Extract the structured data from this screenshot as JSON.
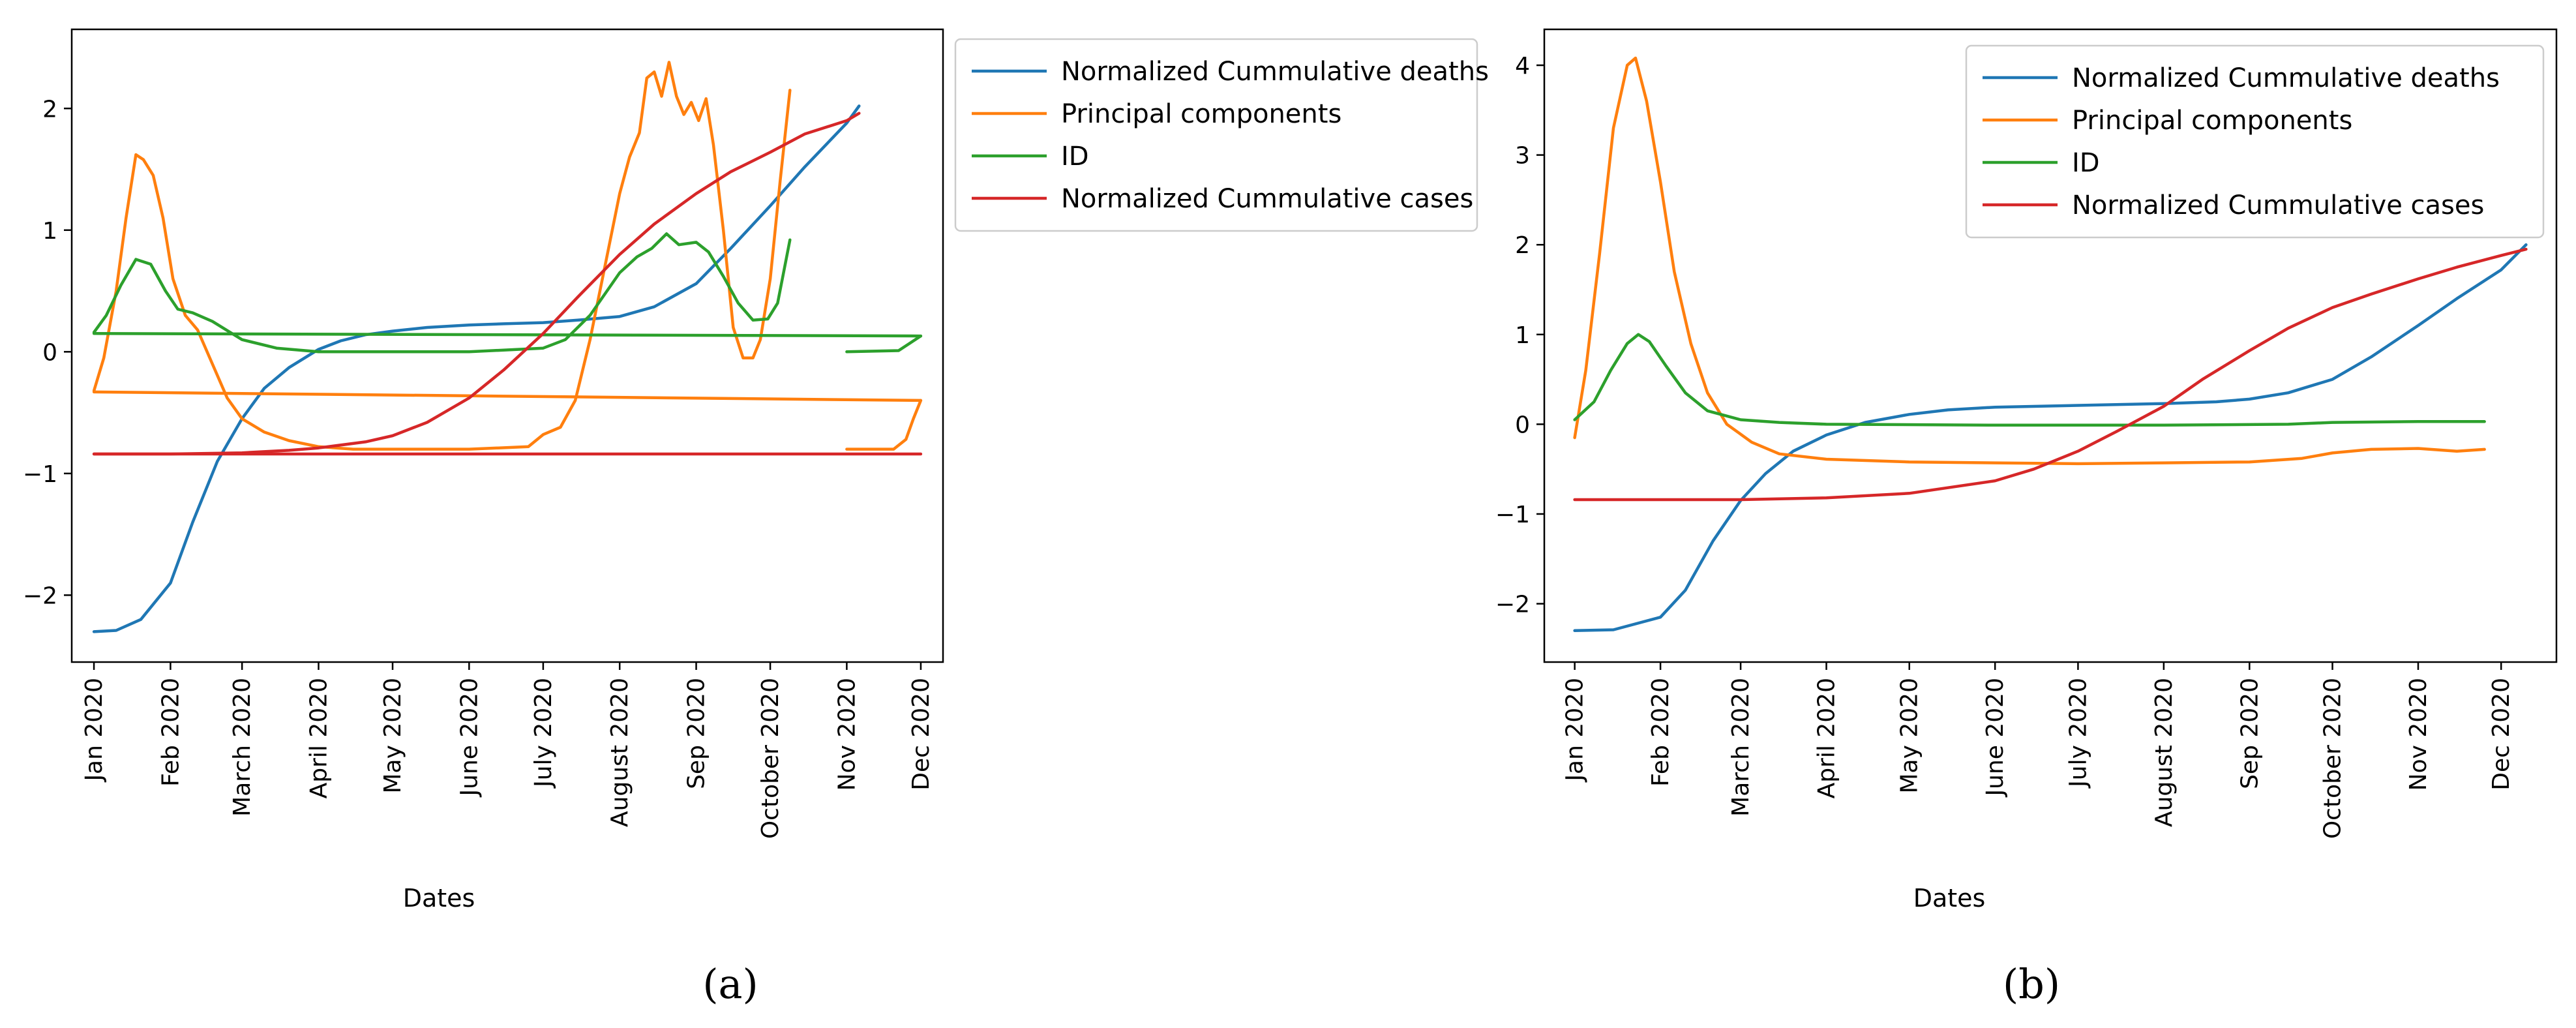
{
  "figure": {
    "captions": [
      "(a)",
      "(b)"
    ]
  },
  "chart_data": [
    {
      "type": "line",
      "panel": "a",
      "xlabel": "Dates",
      "x_tick_labels": [
        "Jan 2020",
        "Feb 2020",
        "March 2020",
        "April 2020",
        "May 2020",
        "June 2020",
        "July 2020",
        "August 2020",
        "Sep 2020",
        "October 2020",
        "Nov 2020",
        "Dec 2020"
      ],
      "xlim": [
        "2019-12-23",
        "2020-12-10"
      ],
      "ylim": [
        -2.55,
        2.65
      ],
      "y_ticks": [
        -2,
        -1,
        0,
        1,
        2
      ],
      "grid": false,
      "legend": {
        "position": "outside-right-top"
      },
      "series": [
        {
          "name": "Normalized Cummulative deaths",
          "color": "#1f77b4",
          "points": [
            [
              "2020-01-01",
              -2.3
            ],
            [
              "2020-01-10",
              -2.29
            ],
            [
              "2020-01-20",
              -2.2
            ],
            [
              "2020-02-01",
              -1.9
            ],
            [
              "2020-02-10",
              -1.4
            ],
            [
              "2020-02-20",
              -0.9
            ],
            [
              "2020-03-01",
              -0.55
            ],
            [
              "2020-03-10",
              -0.3
            ],
            [
              "2020-03-20",
              -0.13
            ],
            [
              "2020-04-01",
              0.02
            ],
            [
              "2020-04-10",
              0.09
            ],
            [
              "2020-04-20",
              0.14
            ],
            [
              "2020-05-01",
              0.17
            ],
            [
              "2020-05-15",
              0.2
            ],
            [
              "2020-06-01",
              0.22
            ],
            [
              "2020-06-15",
              0.23
            ],
            [
              "2020-07-01",
              0.24
            ],
            [
              "2020-07-15",
              0.26
            ],
            [
              "2020-08-01",
              0.29
            ],
            [
              "2020-08-15",
              0.37
            ],
            [
              "2020-09-01",
              0.56
            ],
            [
              "2020-09-15",
              0.85
            ],
            [
              "2020-10-01",
              1.2
            ],
            [
              "2020-10-15",
              1.52
            ],
            [
              "2020-11-01",
              1.88
            ],
            [
              "2020-11-06",
              2.02
            ]
          ]
        },
        {
          "name": "Principal components",
          "color": "#ff7f0e",
          "points": [
            [
              "2020-01-01",
              -0.32
            ],
            [
              "2020-01-05",
              -0.05
            ],
            [
              "2020-01-10",
              0.5
            ],
            [
              "2020-01-14",
              1.1
            ],
            [
              "2020-01-18",
              1.62
            ],
            [
              "2020-01-21",
              1.58
            ],
            [
              "2020-01-25",
              1.45
            ],
            [
              "2020-01-29",
              1.1
            ],
            [
              "2020-02-02",
              0.6
            ],
            [
              "2020-02-07",
              0.3
            ],
            [
              "2020-02-12",
              0.18
            ],
            [
              "2020-02-18",
              -0.1
            ],
            [
              "2020-02-24",
              -0.38
            ],
            [
              "2020-03-01",
              -0.55
            ],
            [
              "2020-03-10",
              -0.66
            ],
            [
              "2020-03-20",
              -0.73
            ],
            [
              "2020-04-01",
              -0.78
            ],
            [
              "2020-04-15",
              -0.8
            ],
            [
              "2020-05-01",
              -0.8
            ],
            [
              "2020-06-01",
              -0.8
            ],
            [
              "2020-06-25",
              -0.78
            ],
            [
              "2020-07-01",
              -0.68
            ],
            [
              "2020-07-08",
              -0.62
            ],
            [
              "2020-07-14",
              -0.4
            ],
            [
              "2020-07-20",
              0.1
            ],
            [
              "2020-07-26",
              0.7
            ],
            [
              "2020-08-01",
              1.3
            ],
            [
              "2020-08-05",
              1.6
            ],
            [
              "2020-08-09",
              1.8
            ],
            [
              "2020-08-12",
              2.25
            ],
            [
              "2020-08-15",
              2.3
            ],
            [
              "2020-08-18",
              2.1
            ],
            [
              "2020-08-21",
              2.38
            ],
            [
              "2020-08-24",
              2.1
            ],
            [
              "2020-08-27",
              1.95
            ],
            [
              "2020-08-30",
              2.05
            ],
            [
              "2020-09-02",
              1.9
            ],
            [
              "2020-09-05",
              2.08
            ],
            [
              "2020-09-08",
              1.7
            ],
            [
              "2020-09-12",
              1.0
            ],
            [
              "2020-09-16",
              0.2
            ],
            [
              "2020-09-20",
              -0.05
            ],
            [
              "2020-09-24",
              -0.05
            ],
            [
              "2020-09-27",
              0.1
            ],
            [
              "2020-10-01",
              0.6
            ],
            [
              "2020-10-05",
              1.4
            ],
            [
              "2020-10-09",
              2.15
            ]
          ],
          "extra_segments": [
            [
              [
                "2020-01-01",
                -0.33
              ],
              [
                "2020-12-01",
                -0.4
              ]
            ],
            [
              [
                "2020-11-01",
                -0.8
              ],
              [
                "2020-11-20",
                -0.8
              ],
              [
                "2020-11-25",
                -0.72
              ],
              [
                "2020-11-28",
                -0.55
              ],
              [
                "2020-12-01",
                -0.4
              ]
            ]
          ]
        },
        {
          "name": "ID",
          "color": "#2ca02c",
          "points": [
            [
              "2020-01-01",
              0.16
            ],
            [
              "2020-01-06",
              0.3
            ],
            [
              "2020-01-12",
              0.55
            ],
            [
              "2020-01-18",
              0.76
            ],
            [
              "2020-01-24",
              0.72
            ],
            [
              "2020-01-30",
              0.5
            ],
            [
              "2020-02-04",
              0.35
            ],
            [
              "2020-02-10",
              0.32
            ],
            [
              "2020-02-18",
              0.25
            ],
            [
              "2020-03-01",
              0.1
            ],
            [
              "2020-03-15",
              0.03
            ],
            [
              "2020-04-01",
              0.0
            ],
            [
              "2020-05-01",
              0.0
            ],
            [
              "2020-06-01",
              0.0
            ],
            [
              "2020-07-01",
              0.03
            ],
            [
              "2020-07-10",
              0.1
            ],
            [
              "2020-07-20",
              0.3
            ],
            [
              "2020-08-01",
              0.65
            ],
            [
              "2020-08-08",
              0.78
            ],
            [
              "2020-08-14",
              0.85
            ],
            [
              "2020-08-20",
              0.97
            ],
            [
              "2020-08-25",
              0.88
            ],
            [
              "2020-09-01",
              0.9
            ],
            [
              "2020-09-06",
              0.82
            ],
            [
              "2020-09-12",
              0.62
            ],
            [
              "2020-09-18",
              0.4
            ],
            [
              "2020-09-24",
              0.26
            ],
            [
              "2020-09-30",
              0.27
            ],
            [
              "2020-10-04",
              0.4
            ],
            [
              "2020-10-09",
              0.92
            ]
          ],
          "extra_segments": [
            [
              [
                "2020-01-01",
                0.15
              ],
              [
                "2020-12-01",
                0.13
              ]
            ],
            [
              [
                "2020-11-01",
                0.0
              ],
              [
                "2020-11-22",
                0.01
              ],
              [
                "2020-12-01",
                0.13
              ]
            ]
          ]
        },
        {
          "name": "Normalized Cummulative cases",
          "color": "#d62728",
          "points": [
            [
              "2020-01-01",
              -0.84
            ],
            [
              "2020-02-01",
              -0.84
            ],
            [
              "2020-03-01",
              -0.83
            ],
            [
              "2020-03-20",
              -0.81
            ],
            [
              "2020-04-01",
              -0.79
            ],
            [
              "2020-04-20",
              -0.74
            ],
            [
              "2020-05-01",
              -0.69
            ],
            [
              "2020-05-15",
              -0.58
            ],
            [
              "2020-06-01",
              -0.38
            ],
            [
              "2020-06-15",
              -0.15
            ],
            [
              "2020-07-01",
              0.15
            ],
            [
              "2020-07-15",
              0.45
            ],
            [
              "2020-08-01",
              0.8
            ],
            [
              "2020-08-15",
              1.05
            ],
            [
              "2020-09-01",
              1.3
            ],
            [
              "2020-09-15",
              1.48
            ],
            [
              "2020-10-01",
              1.64
            ],
            [
              "2020-10-15",
              1.79
            ],
            [
              "2020-11-01",
              1.9
            ],
            [
              "2020-11-06",
              1.96
            ]
          ],
          "extra_segments": [
            [
              [
                "2020-01-01",
                -0.84
              ],
              [
                "2020-12-01",
                -0.84
              ]
            ]
          ]
        }
      ]
    },
    {
      "type": "line",
      "panel": "b",
      "xlabel": "Dates",
      "x_tick_labels": [
        "Jan 2020",
        "Feb 2020",
        "March 2020",
        "April 2020",
        "May 2020",
        "June 2020",
        "July 2020",
        "August 2020",
        "Sep 2020",
        "October 2020",
        "Nov 2020",
        "Dec 2020"
      ],
      "xlim": [
        "2019-12-21",
        "2020-12-21"
      ],
      "ylim": [
        -2.65,
        4.4
      ],
      "y_ticks": [
        -2,
        -1,
        0,
        1,
        2,
        3,
        4
      ],
      "grid": false,
      "legend": {
        "position": "top-right"
      },
      "series": [
        {
          "name": "Normalized Cummulative deaths",
          "color": "#1f77b4",
          "points": [
            [
              "2020-01-01",
              -2.3
            ],
            [
              "2020-01-15",
              -2.29
            ],
            [
              "2020-02-01",
              -2.15
            ],
            [
              "2020-02-10",
              -1.85
            ],
            [
              "2020-02-20",
              -1.3
            ],
            [
              "2020-03-01",
              -0.85
            ],
            [
              "2020-03-10",
              -0.55
            ],
            [
              "2020-03-20",
              -0.3
            ],
            [
              "2020-04-01",
              -0.12
            ],
            [
              "2020-04-15",
              0.02
            ],
            [
              "2020-05-01",
              0.11
            ],
            [
              "2020-05-15",
              0.16
            ],
            [
              "2020-06-01",
              0.19
            ],
            [
              "2020-07-01",
              0.21
            ],
            [
              "2020-08-01",
              0.23
            ],
            [
              "2020-08-20",
              0.25
            ],
            [
              "2020-09-01",
              0.28
            ],
            [
              "2020-09-15",
              0.35
            ],
            [
              "2020-10-01",
              0.5
            ],
            [
              "2020-10-15",
              0.75
            ],
            [
              "2020-11-01",
              1.1
            ],
            [
              "2020-11-15",
              1.4
            ],
            [
              "2020-12-01",
              1.72
            ],
            [
              "2020-12-10",
              2.0
            ]
          ]
        },
        {
          "name": "Principal components",
          "color": "#ff7f0e",
          "points": [
            [
              "2020-01-01",
              -0.15
            ],
            [
              "2020-01-05",
              0.6
            ],
            [
              "2020-01-10",
              1.9
            ],
            [
              "2020-01-15",
              3.3
            ],
            [
              "2020-01-20",
              4.0
            ],
            [
              "2020-01-23",
              4.08
            ],
            [
              "2020-01-27",
              3.6
            ],
            [
              "2020-02-01",
              2.7
            ],
            [
              "2020-02-06",
              1.7
            ],
            [
              "2020-02-12",
              0.9
            ],
            [
              "2020-02-18",
              0.35
            ],
            [
              "2020-02-25",
              0.0
            ],
            [
              "2020-03-05",
              -0.2
            ],
            [
              "2020-03-15",
              -0.33
            ],
            [
              "2020-04-01",
              -0.39
            ],
            [
              "2020-05-01",
              -0.42
            ],
            [
              "2020-06-01",
              -0.43
            ],
            [
              "2020-07-01",
              -0.44
            ],
            [
              "2020-08-01",
              -0.43
            ],
            [
              "2020-09-01",
              -0.42
            ],
            [
              "2020-09-20",
              -0.38
            ],
            [
              "2020-10-01",
              -0.32
            ],
            [
              "2020-10-15",
              -0.28
            ],
            [
              "2020-11-01",
              -0.27
            ],
            [
              "2020-11-15",
              -0.3
            ],
            [
              "2020-11-25",
              -0.28
            ]
          ]
        },
        {
          "name": "ID",
          "color": "#2ca02c",
          "points": [
            [
              "2020-01-01",
              0.05
            ],
            [
              "2020-01-08",
              0.25
            ],
            [
              "2020-01-14",
              0.6
            ],
            [
              "2020-01-20",
              0.9
            ],
            [
              "2020-01-24",
              1.0
            ],
            [
              "2020-01-28",
              0.92
            ],
            [
              "2020-02-03",
              0.65
            ],
            [
              "2020-02-10",
              0.35
            ],
            [
              "2020-02-18",
              0.15
            ],
            [
              "2020-03-01",
              0.05
            ],
            [
              "2020-03-15",
              0.02
            ],
            [
              "2020-04-01",
              0.0
            ],
            [
              "2020-06-01",
              -0.01
            ],
            [
              "2020-08-01",
              -0.01
            ],
            [
              "2020-09-15",
              0.0
            ],
            [
              "2020-10-01",
              0.02
            ],
            [
              "2020-11-01",
              0.03
            ],
            [
              "2020-11-25",
              0.03
            ]
          ]
        },
        {
          "name": "Normalized Cummulative cases",
          "color": "#d62728",
          "points": [
            [
              "2020-01-01",
              -0.84
            ],
            [
              "2020-02-01",
              -0.84
            ],
            [
              "2020-03-01",
              -0.84
            ],
            [
              "2020-04-01",
              -0.82
            ],
            [
              "2020-05-01",
              -0.77
            ],
            [
              "2020-06-01",
              -0.63
            ],
            [
              "2020-06-15",
              -0.5
            ],
            [
              "2020-07-01",
              -0.3
            ],
            [
              "2020-07-15",
              -0.08
            ],
            [
              "2020-08-01",
              0.2
            ],
            [
              "2020-08-15",
              0.5
            ],
            [
              "2020-09-01",
              0.82
            ],
            [
              "2020-09-15",
              1.07
            ],
            [
              "2020-10-01",
              1.3
            ],
            [
              "2020-10-15",
              1.45
            ],
            [
              "2020-11-01",
              1.62
            ],
            [
              "2020-11-15",
              1.75
            ],
            [
              "2020-12-01",
              1.88
            ],
            [
              "2020-12-10",
              1.95
            ]
          ]
        }
      ]
    }
  ]
}
